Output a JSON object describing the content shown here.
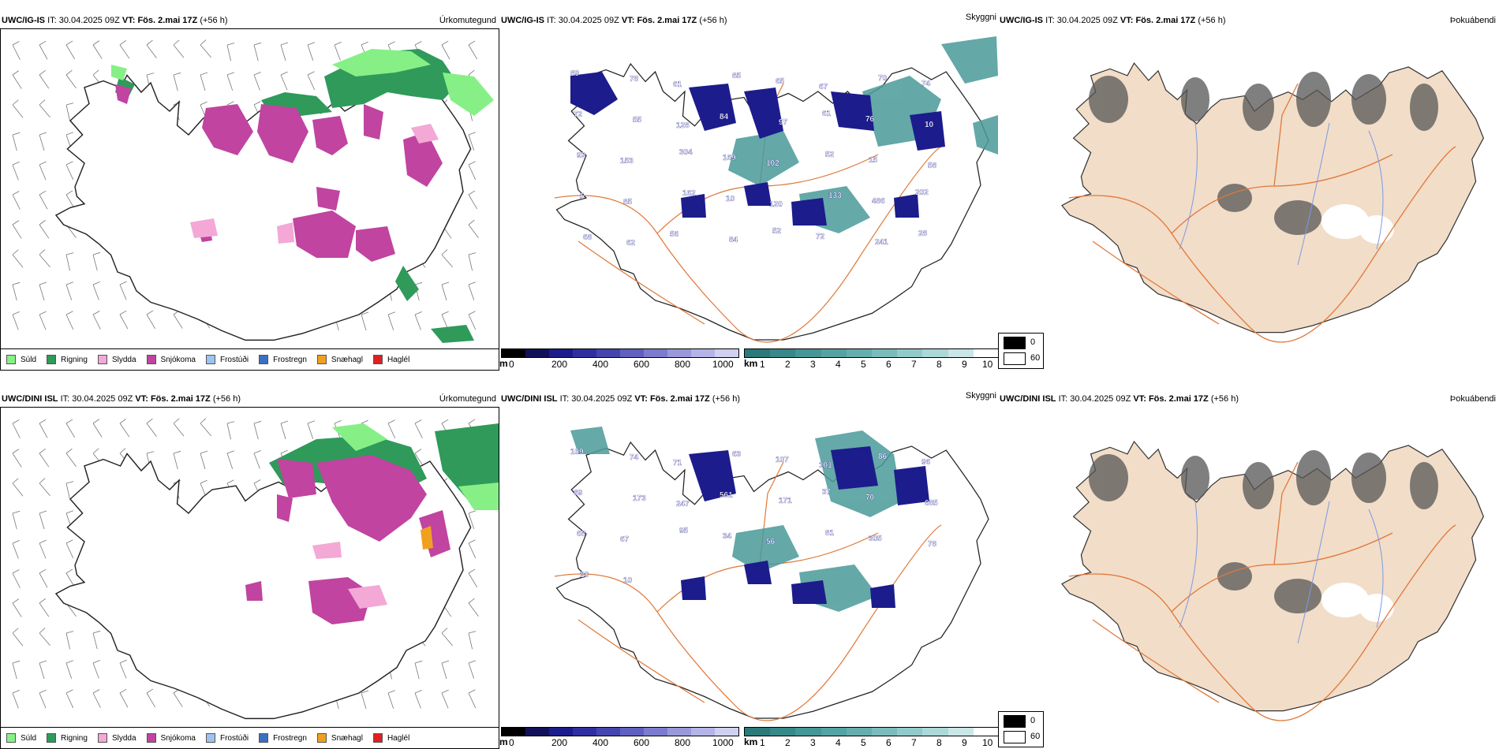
{
  "colors": {
    "suld": "#86f086",
    "rigning": "#2f9a5a",
    "slydda": "#f3a8d6",
    "snjokoma": "#c044a0",
    "frostudi": "#9cc4ee",
    "frostregn": "#3a6fc2",
    "snaehagl": "#f0a020",
    "hagl": "#e02020",
    "visibility_dark": "#1c1c8c",
    "visibility_teal": "#3a8a8a",
    "land_beige": "#f2ddc8",
    "road": "#e0783a",
    "river": "#7a9ae8"
  },
  "rows": [
    {
      "panel1": {
        "title": "UWC/IG-IS",
        "it_label": "IT:",
        "it_time": "30.04.2025 09Z",
        "vt_label": "VT:",
        "vt_time": "Fös. 2.mai 17Z",
        "lead": "(+56 h)",
        "param": "Úrkomutegund"
      },
      "panel2": {
        "title": "UWC/IG-IS",
        "it_label": "IT:",
        "it_time": "30.04.2025 09Z",
        "vt_label": "VT:",
        "vt_time": "Fös. 2.mai 17Z",
        "lead": "(+56 h)",
        "param": "Skyggni",
        "labels": [
          "89",
          "78",
          "61",
          "85",
          "65",
          "67",
          "70",
          "74",
          "72",
          "55",
          "128",
          "84",
          "97",
          "61",
          "76",
          "10",
          "92",
          "153",
          "304",
          "169",
          "102",
          "52",
          "15",
          "58",
          "5",
          "85",
          "162",
          "10",
          "120",
          "133",
          "486",
          "202",
          "68",
          "62",
          "56",
          "84",
          "52",
          "72",
          "241",
          "28"
        ]
      },
      "panel3": {
        "title": "UWC/IG-IS",
        "it_label": "IT:",
        "it_time": "30.04.2025 09Z",
        "vt_label": "VT:",
        "vt_time": "Fös. 2.mai 17Z",
        "lead": "(+56 h)",
        "param": "Þokuábendi"
      }
    },
    {
      "panel1": {
        "title": "UWC/DINI ISL",
        "it_label": "IT:",
        "it_time": "30.04.2025 09Z",
        "vt_label": "VT:",
        "vt_time": "Fös. 2.mai 17Z",
        "lead": "(+56 h)",
        "param": "Úrkomutegund"
      },
      "panel2": {
        "title": "UWC/DINI ISL",
        "it_label": "IT:",
        "it_time": "30.04.2025 09Z",
        "vt_label": "VT:",
        "vt_time": "Fös. 2.mai 17Z",
        "lead": "(+56 h)",
        "param": "Skyggni",
        "labels": [
          "109",
          "74",
          "71",
          "63",
          "107",
          "101",
          "86",
          "96",
          "89",
          "173",
          "247",
          "561",
          "171",
          "37",
          "70",
          "685",
          "68",
          "67",
          "95",
          "34",
          "56",
          "81",
          "305",
          "78",
          "28",
          "10"
        ]
      },
      "panel3": {
        "title": "UWC/DINI ISL",
        "it_label": "IT:",
        "it_time": "30.04.2025 09Z",
        "vt_label": "VT:",
        "vt_time": "Fös. 2.mai 17Z",
        "lead": "(+56 h)",
        "param": "Þokuábendi"
      }
    }
  ],
  "legend_precip": [
    "Súld",
    "Rigning",
    "Slydda",
    "Snjókoma",
    "Frostúði",
    "Frostregn",
    "Snæhagl",
    "Haglél"
  ],
  "scale_m": {
    "unit": "m",
    "ticks": [
      "0",
      "200",
      "400",
      "600",
      "800",
      "1000"
    ]
  },
  "scale_km": {
    "unit": "km",
    "ticks": [
      "1",
      "2",
      "3",
      "4",
      "5",
      "6",
      "7",
      "8",
      "9",
      "10"
    ]
  },
  "legend_fog": [
    "0",
    "60"
  ]
}
